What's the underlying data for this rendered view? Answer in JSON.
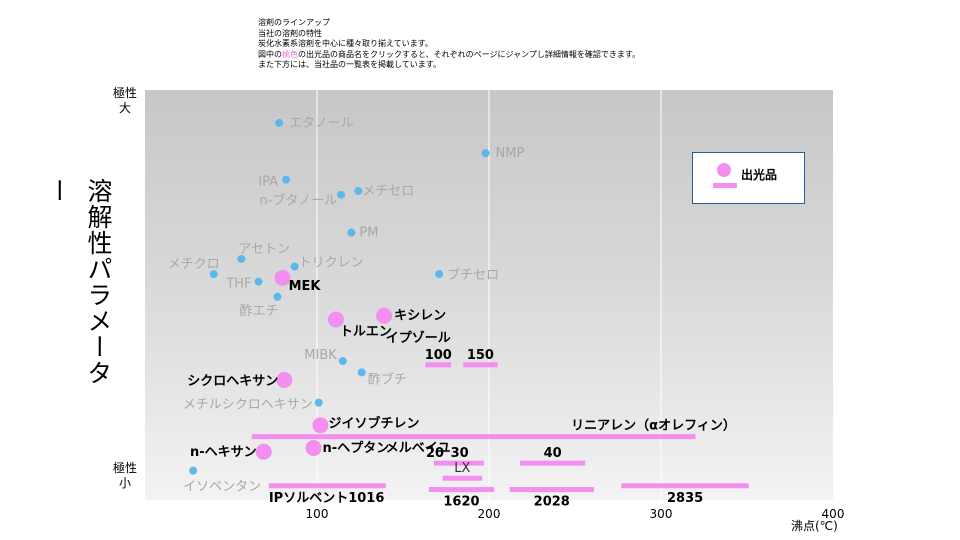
{
  "intro": {
    "l1": "溶剤のラインアップ",
    "l2": "当社の溶剤の特性",
    "l3": "炭化水素系溶剤を中心に種々取り揃えています。",
    "l4_pre": "図中の",
    "l4_hl": "桃色",
    "l4_post": "の出光品の商品名をクリックすると、それぞれのページにジャンプし詳細情報を確認できます。",
    "l5": "また下方には、当社品の一覧表を掲載しています。"
  },
  "axis": {
    "ylabel": "溶解性パラメーター",
    "ytop_1": "極性",
    "ytop_2": "大",
    "ybottom_1": "極性",
    "ybottom_2": "小",
    "xlabel": "沸点(℃)"
  },
  "legend": {
    "label": "出光品"
  },
  "colors": {
    "competitor": "#5bb8ec",
    "idemitsu": "#f28ff0",
    "grey_label": "#a8a8a8",
    "bold_label": "#000000"
  },
  "chart_data": {
    "type": "scatter",
    "xlim": [
      0,
      400
    ],
    "xticks": [
      100,
      200,
      300,
      400
    ],
    "ylim": [
      0,
      100
    ],
    "grid": true,
    "legend_position": "top-right",
    "general_solvents": [
      {
        "name": "エタノール",
        "x": 78,
        "y": 95
      },
      {
        "name": "NMP",
        "x": 198,
        "y": 87
      },
      {
        "name": "IPA",
        "x": 82,
        "y": 80
      },
      {
        "name": "n-ブタノール",
        "x": 114,
        "y": 76
      },
      {
        "name": "メチセロ",
        "x": 124,
        "y": 77
      },
      {
        "name": "PM",
        "x": 120,
        "y": 66
      },
      {
        "name": "メチクロ",
        "x": 40,
        "y": 55
      },
      {
        "name": "アセトン",
        "x": 56,
        "y": 59
      },
      {
        "name": "トリクレン",
        "x": 87,
        "y": 57
      },
      {
        "name": "THF",
        "x": 66,
        "y": 53
      },
      {
        "name": "ブチセロ",
        "x": 171,
        "y": 55
      },
      {
        "name": "酢エチ",
        "x": 77,
        "y": 49
      },
      {
        "name": "MIBK",
        "x": 115,
        "y": 32
      },
      {
        "name": "酢ブチ",
        "x": 126,
        "y": 29
      },
      {
        "name": "メチルシクロヘキサン",
        "x": 101,
        "y": 21
      },
      {
        "name": "イソペンタン",
        "x": 28,
        "y": 3
      }
    ],
    "idemitsu_points": [
      {
        "name": "MEK",
        "x": 80,
        "y": 54
      },
      {
        "name": "キシレン",
        "x": 139,
        "y": 44
      },
      {
        "name": "トルエン",
        "x": 111,
        "y": 43
      },
      {
        "name": "シクロヘキサン",
        "x": 81,
        "y": 27
      },
      {
        "name": "ジイソブチレン",
        "x": 102,
        "y": 15
      },
      {
        "name": "n-ヘプタン",
        "x": 98,
        "y": 9
      },
      {
        "name": "n-ヘキサン",
        "x": 69,
        "y": 8
      }
    ],
    "idemitsu_ranges": [
      {
        "name": "イプゾール",
        "label": "100",
        "x_from": 163,
        "x_to": 178,
        "y": 31
      },
      {
        "name": "イプゾール",
        "label": "150",
        "x_from": 185,
        "x_to": 205,
        "y": 31
      },
      {
        "name": "リニアレン（αオレフィン）",
        "label": "リニアレン（αオレフィン）",
        "x_from": 62,
        "x_to": 320,
        "y": 12
      },
      {
        "name": "メルベイユ",
        "label": "20",
        "x_from": 168,
        "x_to": 182,
        "y": 5
      },
      {
        "name": "メルベイユ",
        "label": "30",
        "x_from": 180,
        "x_to": 197,
        "y": 5
      },
      {
        "name": "メルベイユ",
        "label": "40",
        "x_from": 218,
        "x_to": 256,
        "y": 5
      },
      {
        "name": "LX",
        "label": "LX",
        "x_from": 173,
        "x_to": 196,
        "y": 1
      },
      {
        "name": "IPソルベント",
        "label": "IPソルベント1016",
        "x_from": 72,
        "x_to": 140,
        "y": -1
      },
      {
        "name": "IPソルベント",
        "label": "1620",
        "x_from": 165,
        "x_to": 203,
        "y": -2
      },
      {
        "name": "IPソルベント",
        "label": "2028",
        "x_from": 212,
        "x_to": 261,
        "y": -2
      },
      {
        "name": "IPソルベント",
        "label": "2835",
        "x_from": 277,
        "x_to": 351,
        "y": -1
      }
    ]
  }
}
